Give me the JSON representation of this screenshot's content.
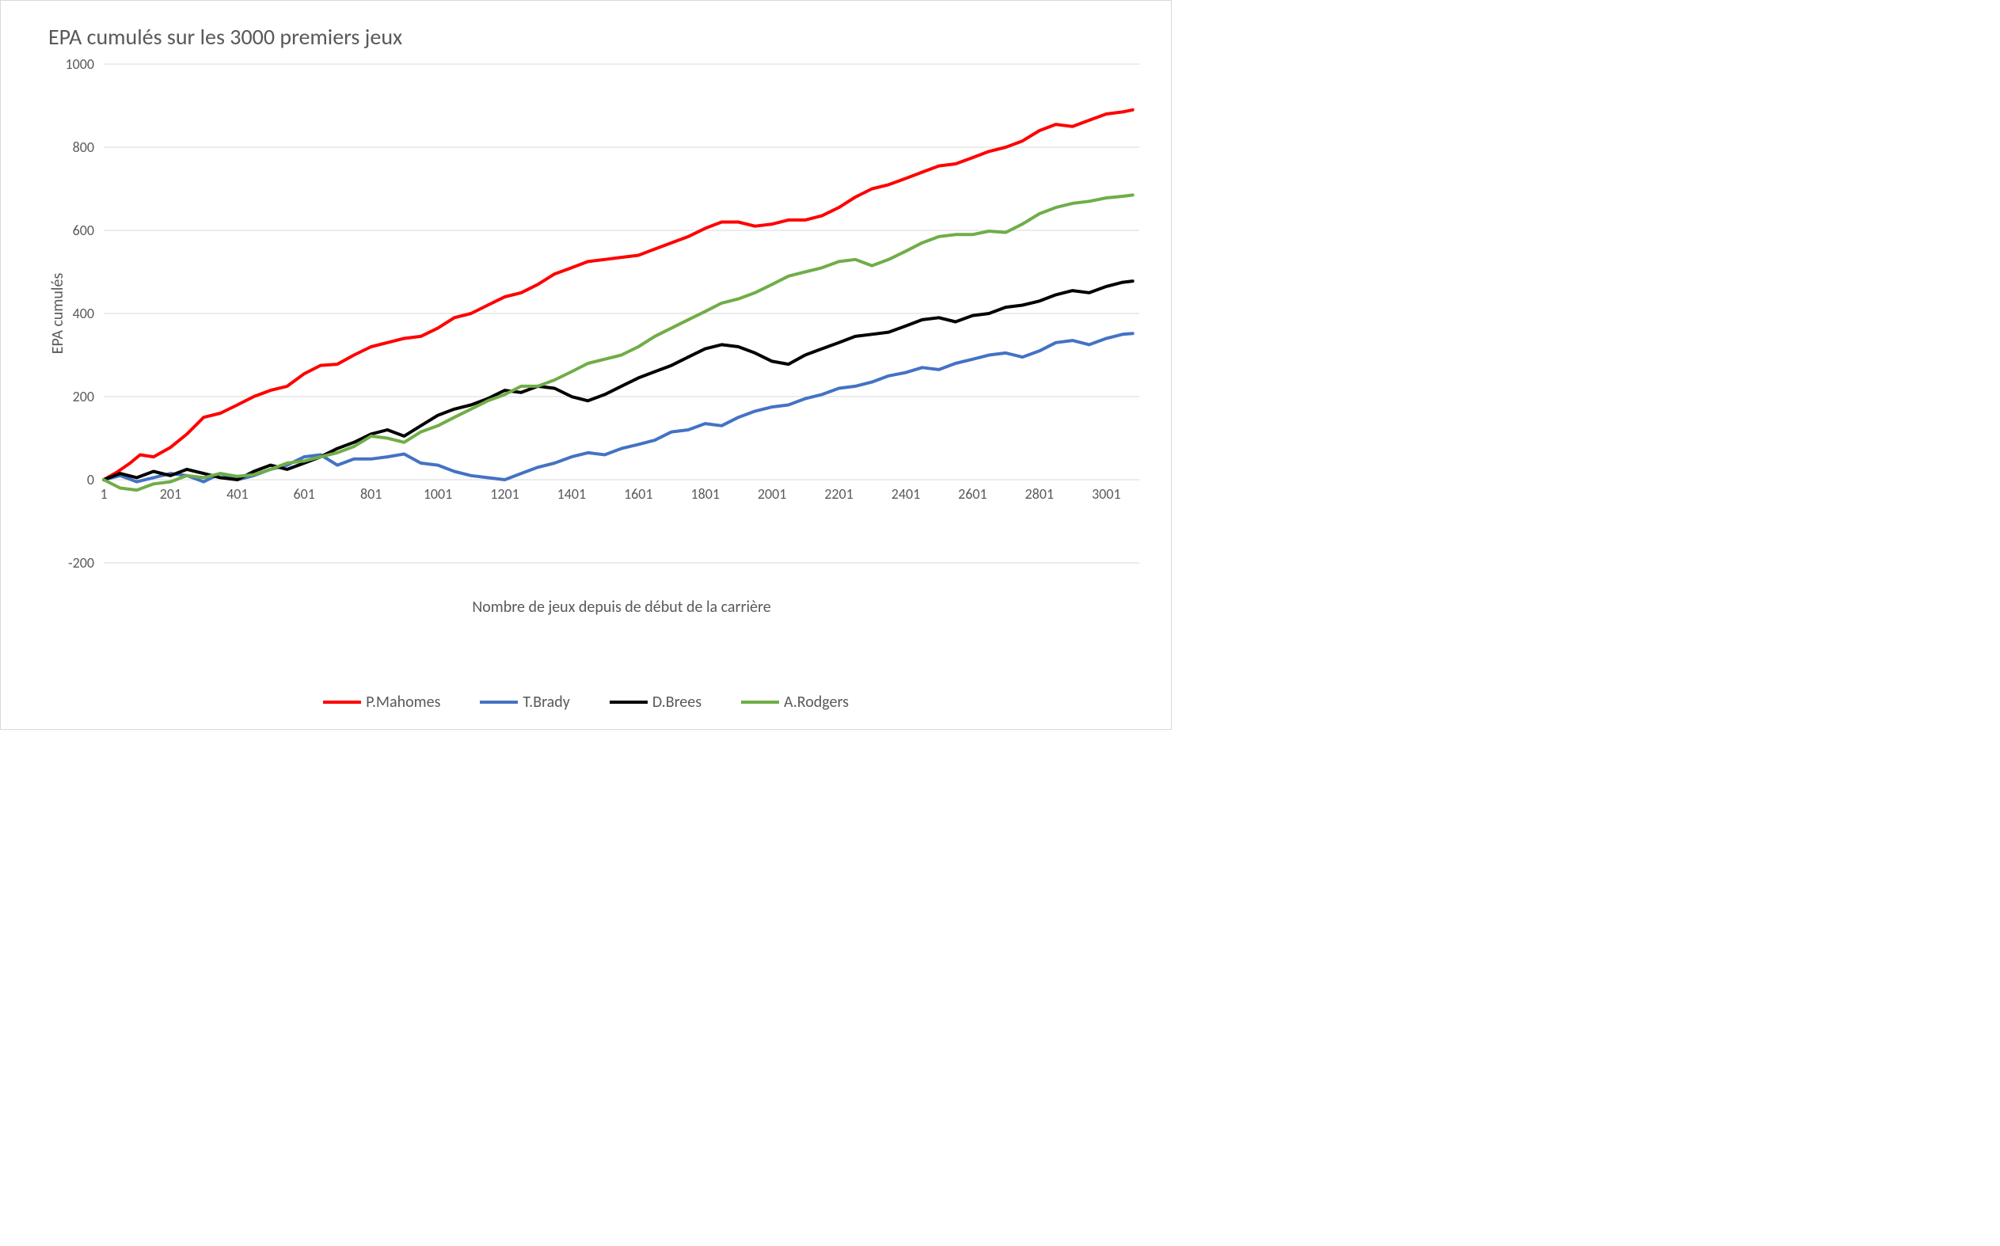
{
  "chart": {
    "type": "line",
    "title": "EPA cumulés sur les 3000 premiers jeux",
    "title_fontsize": 28,
    "title_color": "#595959",
    "background_color": "#ffffff",
    "border_color": "#d9d9d9",
    "grid_color": "#d9d9d9",
    "axis_text_color": "#595959",
    "axis_fontsize": 18,
    "label_fontsize": 20,
    "x_axis": {
      "label": "Nombre de jeux depuis de début de la carrière",
      "min": 1,
      "max": 3100,
      "tick_start": 1,
      "tick_step": 200,
      "ticks": [
        1,
        201,
        401,
        601,
        801,
        1001,
        1201,
        1401,
        1601,
        1801,
        2001,
        2201,
        2401,
        2601,
        2801,
        3001
      ]
    },
    "y_axis": {
      "label": "EPA cumulés",
      "min": -200,
      "max": 1000,
      "tick_step": 200,
      "ticks": [
        -200,
        0,
        200,
        400,
        600,
        800,
        1000
      ]
    },
    "line_width": 4,
    "series": [
      {
        "name": "P.Mahomes",
        "color": "#ff0000",
        "points": [
          [
            1,
            0
          ],
          [
            40,
            18
          ],
          [
            80,
            40
          ],
          [
            110,
            60
          ],
          [
            150,
            55
          ],
          [
            201,
            78
          ],
          [
            250,
            110
          ],
          [
            300,
            150
          ],
          [
            350,
            160
          ],
          [
            401,
            180
          ],
          [
            450,
            200
          ],
          [
            500,
            215
          ],
          [
            550,
            225
          ],
          [
            601,
            255
          ],
          [
            650,
            275
          ],
          [
            700,
            278
          ],
          [
            750,
            300
          ],
          [
            801,
            320
          ],
          [
            850,
            330
          ],
          [
            900,
            340
          ],
          [
            950,
            345
          ],
          [
            1001,
            365
          ],
          [
            1050,
            390
          ],
          [
            1100,
            400
          ],
          [
            1150,
            420
          ],
          [
            1201,
            440
          ],
          [
            1250,
            450
          ],
          [
            1300,
            470
          ],
          [
            1350,
            495
          ],
          [
            1401,
            510
          ],
          [
            1450,
            525
          ],
          [
            1500,
            530
          ],
          [
            1550,
            535
          ],
          [
            1601,
            540
          ],
          [
            1650,
            555
          ],
          [
            1700,
            570
          ],
          [
            1750,
            585
          ],
          [
            1801,
            605
          ],
          [
            1850,
            620
          ],
          [
            1900,
            620
          ],
          [
            1950,
            610
          ],
          [
            2001,
            615
          ],
          [
            2050,
            625
          ],
          [
            2100,
            625
          ],
          [
            2150,
            635
          ],
          [
            2201,
            655
          ],
          [
            2250,
            680
          ],
          [
            2300,
            700
          ],
          [
            2350,
            710
          ],
          [
            2401,
            725
          ],
          [
            2450,
            740
          ],
          [
            2500,
            755
          ],
          [
            2550,
            760
          ],
          [
            2601,
            775
          ],
          [
            2650,
            790
          ],
          [
            2700,
            800
          ],
          [
            2750,
            815
          ],
          [
            2801,
            840
          ],
          [
            2850,
            855
          ],
          [
            2900,
            850
          ],
          [
            2950,
            865
          ],
          [
            3001,
            880
          ],
          [
            3050,
            885
          ],
          [
            3080,
            890
          ]
        ]
      },
      {
        "name": "T.Brady",
        "color": "#4472c4",
        "points": [
          [
            1,
            0
          ],
          [
            50,
            10
          ],
          [
            100,
            -5
          ],
          [
            150,
            5
          ],
          [
            201,
            15
          ],
          [
            250,
            10
          ],
          [
            300,
            -5
          ],
          [
            350,
            15
          ],
          [
            401,
            0
          ],
          [
            450,
            10
          ],
          [
            500,
            25
          ],
          [
            550,
            35
          ],
          [
            601,
            55
          ],
          [
            650,
            60
          ],
          [
            700,
            35
          ],
          [
            750,
            50
          ],
          [
            801,
            50
          ],
          [
            850,
            55
          ],
          [
            900,
            62
          ],
          [
            950,
            40
          ],
          [
            1001,
            35
          ],
          [
            1050,
            20
          ],
          [
            1100,
            10
          ],
          [
            1150,
            5
          ],
          [
            1201,
            0
          ],
          [
            1250,
            15
          ],
          [
            1300,
            30
          ],
          [
            1350,
            40
          ],
          [
            1401,
            55
          ],
          [
            1450,
            65
          ],
          [
            1500,
            60
          ],
          [
            1550,
            75
          ],
          [
            1601,
            85
          ],
          [
            1650,
            95
          ],
          [
            1700,
            115
          ],
          [
            1750,
            120
          ],
          [
            1801,
            135
          ],
          [
            1850,
            130
          ],
          [
            1900,
            150
          ],
          [
            1950,
            165
          ],
          [
            2001,
            175
          ],
          [
            2050,
            180
          ],
          [
            2100,
            195
          ],
          [
            2150,
            205
          ],
          [
            2201,
            220
          ],
          [
            2250,
            225
          ],
          [
            2300,
            235
          ],
          [
            2350,
            250
          ],
          [
            2401,
            258
          ],
          [
            2450,
            270
          ],
          [
            2500,
            265
          ],
          [
            2550,
            280
          ],
          [
            2601,
            290
          ],
          [
            2650,
            300
          ],
          [
            2700,
            305
          ],
          [
            2750,
            295
          ],
          [
            2801,
            310
          ],
          [
            2850,
            330
          ],
          [
            2900,
            335
          ],
          [
            2950,
            325
          ],
          [
            3001,
            340
          ],
          [
            3050,
            350
          ],
          [
            3080,
            352
          ]
        ]
      },
      {
        "name": "D.Brees",
        "color": "#000000",
        "points": [
          [
            1,
            0
          ],
          [
            50,
            15
          ],
          [
            100,
            5
          ],
          [
            150,
            20
          ],
          [
            201,
            10
          ],
          [
            250,
            25
          ],
          [
            300,
            15
          ],
          [
            350,
            5
          ],
          [
            401,
            0
          ],
          [
            450,
            20
          ],
          [
            500,
            35
          ],
          [
            550,
            25
          ],
          [
            601,
            40
          ],
          [
            650,
            55
          ],
          [
            700,
            75
          ],
          [
            750,
            90
          ],
          [
            801,
            110
          ],
          [
            850,
            120
          ],
          [
            900,
            105
          ],
          [
            950,
            130
          ],
          [
            1001,
            155
          ],
          [
            1050,
            170
          ],
          [
            1100,
            180
          ],
          [
            1150,
            195
          ],
          [
            1201,
            215
          ],
          [
            1250,
            210
          ],
          [
            1300,
            225
          ],
          [
            1350,
            220
          ],
          [
            1401,
            200
          ],
          [
            1450,
            190
          ],
          [
            1500,
            205
          ],
          [
            1550,
            225
          ],
          [
            1601,
            245
          ],
          [
            1650,
            260
          ],
          [
            1700,
            275
          ],
          [
            1750,
            295
          ],
          [
            1801,
            315
          ],
          [
            1850,
            325
          ],
          [
            1900,
            320
          ],
          [
            1950,
            305
          ],
          [
            2001,
            285
          ],
          [
            2050,
            278
          ],
          [
            2100,
            300
          ],
          [
            2150,
            315
          ],
          [
            2201,
            330
          ],
          [
            2250,
            345
          ],
          [
            2300,
            350
          ],
          [
            2350,
            355
          ],
          [
            2401,
            370
          ],
          [
            2450,
            385
          ],
          [
            2500,
            390
          ],
          [
            2550,
            380
          ],
          [
            2601,
            395
          ],
          [
            2650,
            400
          ],
          [
            2700,
            415
          ],
          [
            2750,
            420
          ],
          [
            2801,
            430
          ],
          [
            2850,
            445
          ],
          [
            2900,
            455
          ],
          [
            2950,
            450
          ],
          [
            3001,
            465
          ],
          [
            3050,
            475
          ],
          [
            3080,
            478
          ]
        ]
      },
      {
        "name": "A.Rodgers",
        "color": "#70ad47",
        "points": [
          [
            1,
            0
          ],
          [
            50,
            -20
          ],
          [
            100,
            -25
          ],
          [
            150,
            -10
          ],
          [
            201,
            -5
          ],
          [
            250,
            10
          ],
          [
            300,
            5
          ],
          [
            350,
            15
          ],
          [
            401,
            8
          ],
          [
            450,
            12
          ],
          [
            500,
            25
          ],
          [
            550,
            40
          ],
          [
            601,
            45
          ],
          [
            650,
            55
          ],
          [
            700,
            65
          ],
          [
            750,
            80
          ],
          [
            801,
            105
          ],
          [
            850,
            100
          ],
          [
            900,
            90
          ],
          [
            950,
            115
          ],
          [
            1001,
            130
          ],
          [
            1050,
            150
          ],
          [
            1100,
            170
          ],
          [
            1150,
            190
          ],
          [
            1201,
            205
          ],
          [
            1250,
            225
          ],
          [
            1300,
            225
          ],
          [
            1350,
            240
          ],
          [
            1401,
            260
          ],
          [
            1450,
            280
          ],
          [
            1500,
            290
          ],
          [
            1550,
            300
          ],
          [
            1601,
            320
          ],
          [
            1650,
            345
          ],
          [
            1700,
            365
          ],
          [
            1750,
            385
          ],
          [
            1801,
            405
          ],
          [
            1850,
            425
          ],
          [
            1900,
            435
          ],
          [
            1950,
            450
          ],
          [
            2001,
            470
          ],
          [
            2050,
            490
          ],
          [
            2100,
            500
          ],
          [
            2150,
            510
          ],
          [
            2201,
            525
          ],
          [
            2250,
            530
          ],
          [
            2300,
            515
          ],
          [
            2350,
            530
          ],
          [
            2401,
            550
          ],
          [
            2450,
            570
          ],
          [
            2500,
            585
          ],
          [
            2550,
            590
          ],
          [
            2601,
            590
          ],
          [
            2650,
            598
          ],
          [
            2700,
            595
          ],
          [
            2750,
            615
          ],
          [
            2801,
            640
          ],
          [
            2850,
            655
          ],
          [
            2900,
            665
          ],
          [
            2950,
            670
          ],
          [
            3001,
            678
          ],
          [
            3050,
            682
          ],
          [
            3080,
            685
          ]
        ]
      }
    ],
    "legend": {
      "position": "bottom",
      "swatch_width": 48,
      "swatch_height": 4,
      "fontsize": 20
    }
  }
}
